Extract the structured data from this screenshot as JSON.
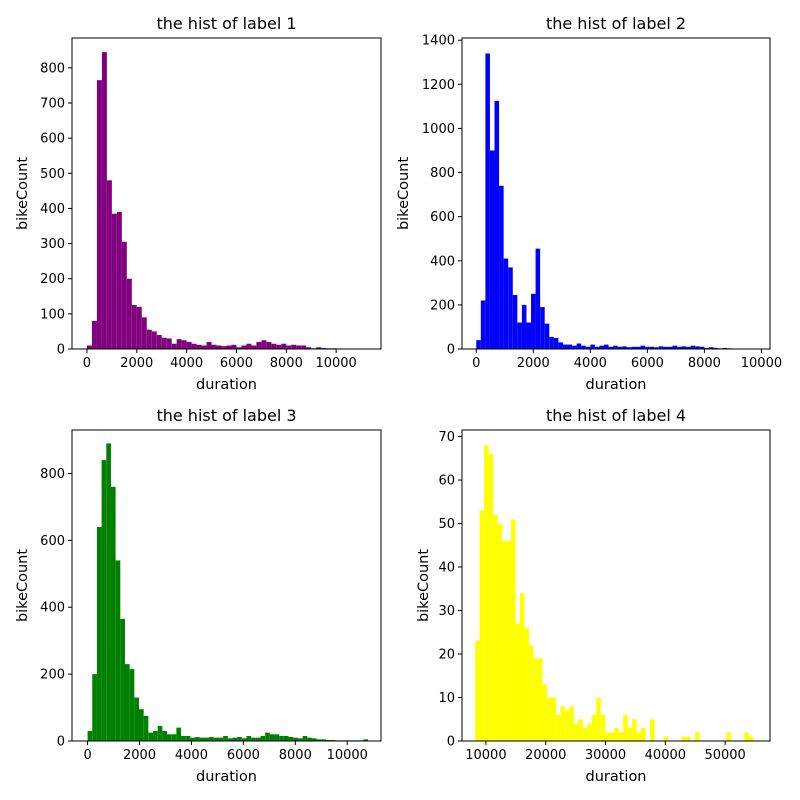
{
  "chart_data": [
    {
      "type": "bar",
      "title": "the hist of label 1",
      "xlabel": "duration",
      "ylabel": "bikeCount",
      "color": "#800080",
      "xlim": [
        -600,
        11800
      ],
      "ylim": [
        0,
        885
      ],
      "xticks": [
        0,
        2000,
        4000,
        6000,
        8000,
        10000
      ],
      "yticks": [
        0,
        100,
        200,
        300,
        400,
        500,
        600,
        700,
        800
      ],
      "bin_width": 200,
      "bins_start": [
        0,
        200,
        400,
        600,
        800,
        1000,
        1200,
        1400,
        1600,
        1800,
        2000,
        2200,
        2400,
        2600,
        2800,
        3000,
        3200,
        3400,
        3600,
        3800,
        4000,
        4200,
        4400,
        4600,
        4800,
        5000,
        5200,
        5400,
        5600,
        5800,
        6000,
        6200,
        6400,
        6600,
        6800,
        7000,
        7200,
        7400,
        7600,
        7800,
        8000,
        8200,
        8400,
        8600,
        8800,
        9000,
        9200,
        9400,
        9600,
        9800,
        10000,
        10200,
        10400,
        10600,
        10800,
        11000
      ],
      "values": [
        10,
        80,
        765,
        845,
        480,
        385,
        390,
        305,
        200,
        125,
        120,
        90,
        55,
        50,
        40,
        32,
        30,
        15,
        28,
        25,
        20,
        15,
        12,
        10,
        20,
        12,
        10,
        8,
        10,
        12,
        5,
        10,
        15,
        10,
        20,
        25,
        20,
        15,
        12,
        15,
        10,
        12,
        10,
        10,
        5,
        2,
        5,
        3,
        2,
        2,
        1,
        1,
        1,
        1,
        1,
        1
      ]
    },
    {
      "type": "bar",
      "title": "the hist of label 2",
      "xlabel": "duration",
      "ylabel": "bikeCount",
      "color": "#0000ff",
      "xlim": [
        -500,
        10300
      ],
      "ylim": [
        0,
        1410
      ],
      "xticks": [
        0,
        2000,
        4000,
        6000,
        8000,
        10000
      ],
      "yticks": [
        0,
        200,
        400,
        600,
        800,
        1000,
        1200,
        1400
      ],
      "bin_width": 160,
      "bins_start": [
        0,
        160,
        320,
        480,
        640,
        800,
        960,
        1120,
        1280,
        1440,
        1600,
        1760,
        1920,
        2080,
        2240,
        2400,
        2560,
        2720,
        2880,
        3040,
        3200,
        3360,
        3520,
        3680,
        3840,
        4000,
        4160,
        4320,
        4480,
        4640,
        4800,
        4960,
        5120,
        5280,
        5440,
        5600,
        5760,
        5920,
        6080,
        6240,
        6400,
        6560,
        6720,
        6880,
        7040,
        7200,
        7360,
        7520,
        7680,
        7840,
        8000,
        8160,
        8320,
        8480,
        8640,
        8800,
        8960,
        9120,
        9280,
        9440,
        9600,
        9760
      ],
      "values": [
        40,
        220,
        1340,
        900,
        1125,
        740,
        410,
        370,
        245,
        120,
        200,
        120,
        250,
        455,
        190,
        115,
        55,
        50,
        30,
        20,
        20,
        15,
        25,
        15,
        10,
        20,
        10,
        15,
        20,
        10,
        15,
        10,
        12,
        8,
        10,
        10,
        15,
        10,
        10,
        8,
        12,
        10,
        10,
        15,
        10,
        12,
        10,
        15,
        12,
        10,
        5,
        8,
        5,
        3,
        5,
        3,
        2,
        2,
        2,
        2,
        2,
        2
      ]
    },
    {
      "type": "bar",
      "title": "the hist of label 3",
      "xlabel": "duration",
      "ylabel": "bikeCount",
      "color": "#008000",
      "xlim": [
        -600,
        11300
      ],
      "ylim": [
        0,
        930
      ],
      "xticks": [
        0,
        2000,
        4000,
        6000,
        8000,
        10000
      ],
      "yticks": [
        0,
        200,
        400,
        600,
        800
      ],
      "bin_width": 180,
      "bins_start": [
        0,
        180,
        360,
        540,
        720,
        900,
        1080,
        1260,
        1440,
        1620,
        1800,
        1980,
        2160,
        2340,
        2520,
        2700,
        2880,
        3060,
        3240,
        3420,
        3600,
        3780,
        3960,
        4140,
        4320,
        4500,
        4680,
        4860,
        5040,
        5220,
        5400,
        5580,
        5760,
        5940,
        6120,
        6300,
        6480,
        6660,
        6840,
        7020,
        7200,
        7380,
        7560,
        7740,
        7920,
        8100,
        8280,
        8460,
        8640,
        8820,
        9000,
        9180,
        9360,
        9540,
        9720,
        9900,
        10080,
        10260,
        10440,
        10620,
        10800
      ],
      "values": [
        30,
        200,
        640,
        840,
        890,
        760,
        540,
        365,
        230,
        215,
        130,
        95,
        75,
        25,
        30,
        45,
        30,
        20,
        20,
        40,
        15,
        15,
        10,
        12,
        10,
        10,
        12,
        10,
        10,
        15,
        8,
        10,
        12,
        8,
        15,
        10,
        10,
        15,
        25,
        20,
        20,
        15,
        15,
        12,
        10,
        8,
        15,
        10,
        8,
        5,
        5,
        3,
        3,
        2,
        2,
        2,
        2,
        2,
        2,
        5,
        1
      ]
    },
    {
      "type": "bar",
      "title": "the hist of label 4",
      "xlabel": "duration",
      "ylabel": "bikeCount",
      "color": "#ffff00",
      "xlim": [
        6000,
        57500
      ],
      "ylim": [
        0,
        71.5
      ],
      "xticks": [
        10000,
        20000,
        30000,
        40000,
        50000
      ],
      "yticks": [
        0,
        10,
        20,
        30,
        40,
        50,
        60,
        70
      ],
      "bin_width": 750,
      "bins_start": [
        8200,
        8950,
        9700,
        10450,
        11200,
        11950,
        12700,
        13450,
        14200,
        14950,
        15700,
        16450,
        17200,
        17950,
        18700,
        19450,
        20200,
        20950,
        21700,
        22450,
        23200,
        23950,
        24700,
        25450,
        26200,
        26950,
        27700,
        28450,
        29200,
        29950,
        30700,
        31450,
        32200,
        32950,
        33700,
        34450,
        35200,
        35950,
        36700,
        37450,
        38200,
        38950,
        39700,
        40450,
        41200,
        41950,
        42700,
        43450,
        44200,
        44950,
        45700,
        46450,
        47200,
        47950,
        48700,
        49450,
        50200,
        50950,
        51700,
        52450,
        53200,
        53950,
        54700
      ],
      "values": [
        23,
        53,
        68,
        66,
        52,
        50,
        46,
        46,
        51,
        27,
        34,
        26,
        22,
        19,
        19,
        13,
        10,
        10,
        6,
        8,
        7,
        8,
        4,
        5,
        3,
        4,
        6,
        10,
        6,
        2,
        2,
        3,
        2,
        6,
        3,
        5,
        2,
        3,
        0,
        5,
        0,
        0,
        1,
        0,
        0,
        0,
        1,
        1,
        0,
        2,
        0,
        0,
        0,
        0,
        0,
        0,
        2,
        0,
        0,
        0,
        2,
        1,
        0
      ]
    }
  ]
}
